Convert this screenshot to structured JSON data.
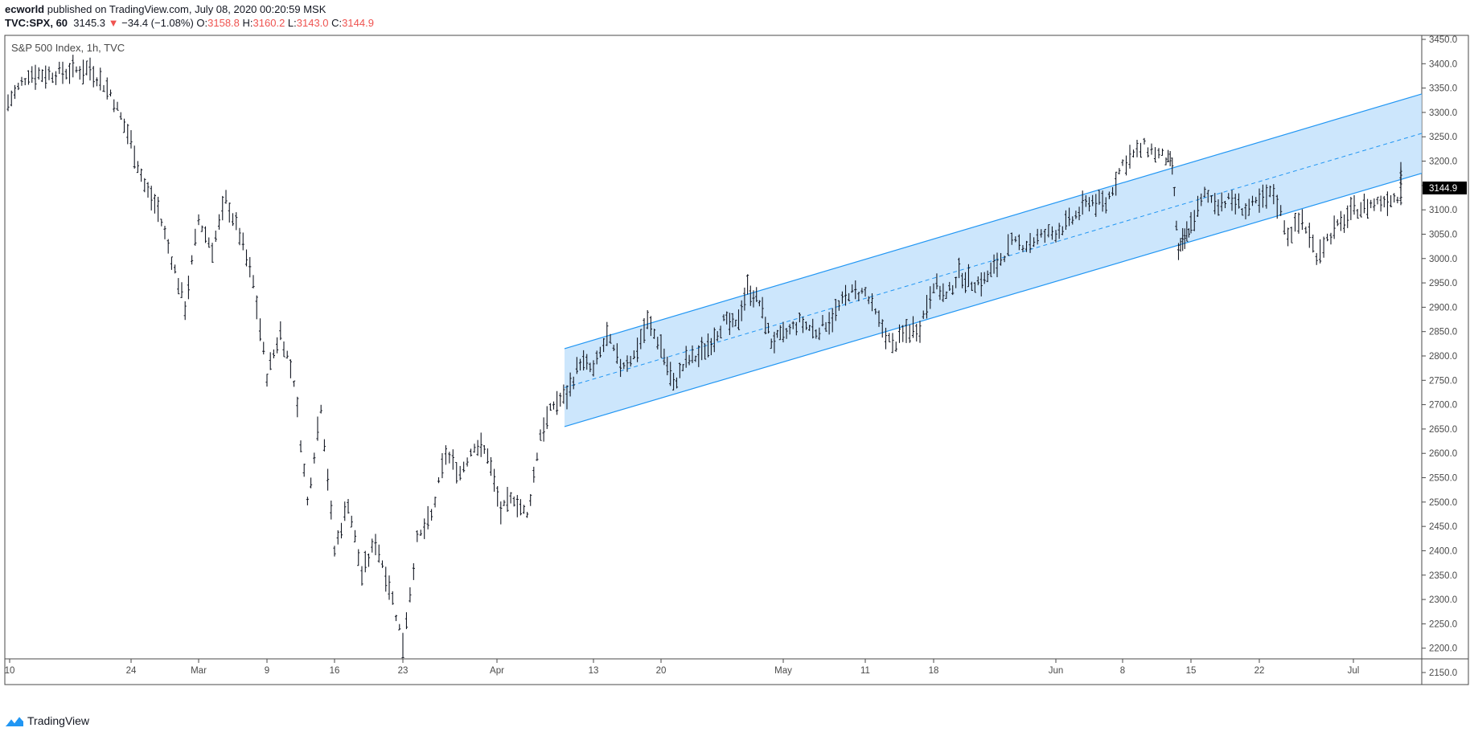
{
  "header": {
    "author": "ecworld",
    "published_text": "published on TradingView.com, July 08, 2020 00:20:59 MSK",
    "symbol": "TVC:SPX, 60",
    "last": "3145.3",
    "change_arrow": "▼",
    "change": "−34.4 (−1.08%)",
    "open_label": "O:",
    "open": "3158.8",
    "high_label": "H:",
    "high": "3160.2",
    "low_label": "L:",
    "low": "3143.0",
    "close_label": "C:",
    "close": "3144.9"
  },
  "legend": {
    "title": "S&P 500 Index, 1h, TVC"
  },
  "footer": {
    "brand": "TradingView",
    "icon": "tradingview-logo-icon"
  },
  "colors": {
    "candle": "#131722",
    "channel_line": "#2196f3",
    "channel_fill": "#bbdefb",
    "up": "#26a69a",
    "down": "#ef5350",
    "price_tag_bg": "#000000"
  },
  "chart_data": {
    "type": "line",
    "style": "ohlc-bars",
    "title": "S&P 500 Index, 1h, TVC",
    "ylim": [
      2125,
      3455
    ],
    "y_ticks": [
      3450.0,
      3400.0,
      3350.0,
      3300.0,
      3250.0,
      3200.0,
      3150.0,
      3100.0,
      3050.0,
      3000.0,
      2950.0,
      2900.0,
      2850.0,
      2800.0,
      2750.0,
      2700.0,
      2650.0,
      2600.0,
      2550.0,
      2500.0,
      2450.0,
      2400.0,
      2350.0,
      2300.0,
      2250.0,
      2200.0,
      2150.0
    ],
    "x_ticks": [
      "10",
      "24",
      "Mar",
      "9",
      "16",
      "23",
      "Apr",
      "13",
      "20",
      "May",
      "11",
      "18",
      "Jun",
      "8",
      "15",
      "22",
      "Jul"
    ],
    "last_price_label": "3144.9",
    "last_price": 3144.9,
    "grid": false,
    "series": [
      {
        "name": "S&P 500 Index",
        "points": [
          {
            "x": "Feb 10",
            "y": 3320
          },
          {
            "x": "Feb 12",
            "y": 3380
          },
          {
            "x": "Feb 14",
            "y": 3378
          },
          {
            "x": "Feb 17",
            "y": 3385
          },
          {
            "x": "Feb 19",
            "y": 3390
          },
          {
            "x": "Feb 21",
            "y": 3340
          },
          {
            "x": "Feb 24",
            "y": 3240
          },
          {
            "x": "Feb 25",
            "y": 3150
          },
          {
            "x": "Feb 26",
            "y": 3100
          },
          {
            "x": "Feb 27",
            "y": 3000
          },
          {
            "x": "Feb 28",
            "y": 2900
          },
          {
            "x": "Mar 2",
            "y": 3080
          },
          {
            "x": "Mar 3",
            "y": 3020
          },
          {
            "x": "Mar 4",
            "y": 3120
          },
          {
            "x": "Mar 5",
            "y": 3050
          },
          {
            "x": "Mar 6",
            "y": 2950
          },
          {
            "x": "Mar 9",
            "y": 2760
          },
          {
            "x": "Mar 10",
            "y": 2850
          },
          {
            "x": "Mar 11",
            "y": 2750
          },
          {
            "x": "Mar 12",
            "y": 2500
          },
          {
            "x": "Mar 13",
            "y": 2700
          },
          {
            "x": "Mar 16",
            "y": 2400
          },
          {
            "x": "Mar 17",
            "y": 2500
          },
          {
            "x": "Mar 18",
            "y": 2350
          },
          {
            "x": "Mar 19",
            "y": 2420
          },
          {
            "x": "Mar 20",
            "y": 2330
          },
          {
            "x": "Mar 23",
            "y": 2210
          },
          {
            "x": "Mar 24",
            "y": 2420
          },
          {
            "x": "Mar 25",
            "y": 2470
          },
          {
            "x": "Mar 26",
            "y": 2600
          },
          {
            "x": "Mar 27",
            "y": 2560
          },
          {
            "x": "Mar 30",
            "y": 2620
          },
          {
            "x": "Mar 31",
            "y": 2600
          },
          {
            "x": "Apr 1",
            "y": 2480
          },
          {
            "x": "Apr 2",
            "y": 2510
          },
          {
            "x": "Apr 3",
            "y": 2470
          },
          {
            "x": "Apr 6",
            "y": 2640
          },
          {
            "x": "Apr 7",
            "y": 2700
          },
          {
            "x": "Apr 8",
            "y": 2720
          },
          {
            "x": "Apr 9",
            "y": 2790
          },
          {
            "x": "Apr 13",
            "y": 2770
          },
          {
            "x": "Apr 14",
            "y": 2840
          },
          {
            "x": "Apr 15",
            "y": 2780
          },
          {
            "x": "Apr 16",
            "y": 2800
          },
          {
            "x": "Apr 17",
            "y": 2870
          },
          {
            "x": "Apr 20",
            "y": 2820
          },
          {
            "x": "Apr 21",
            "y": 2740
          },
          {
            "x": "Apr 22",
            "y": 2790
          },
          {
            "x": "Apr 23",
            "y": 2800
          },
          {
            "x": "Apr 24",
            "y": 2830
          },
          {
            "x": "Apr 27",
            "y": 2870
          },
          {
            "x": "Apr 28",
            "y": 2860
          },
          {
            "x": "Apr 29",
            "y": 2940
          },
          {
            "x": "Apr 30",
            "y": 2910
          },
          {
            "x": "May 1",
            "y": 2830
          },
          {
            "x": "May 4",
            "y": 2840
          },
          {
            "x": "May 5",
            "y": 2870
          },
          {
            "x": "May 6",
            "y": 2850
          },
          {
            "x": "May 7",
            "y": 2880
          },
          {
            "x": "May 8",
            "y": 2930
          },
          {
            "x": "May 11",
            "y": 2930
          },
          {
            "x": "May 12",
            "y": 2870
          },
          {
            "x": "May 13",
            "y": 2820
          },
          {
            "x": "May 14",
            "y": 2850
          },
          {
            "x": "May 15",
            "y": 2860
          },
          {
            "x": "May 18",
            "y": 2950
          },
          {
            "x": "May 19",
            "y": 2920
          },
          {
            "x": "May 20",
            "y": 2970
          },
          {
            "x": "May 21",
            "y": 2950
          },
          {
            "x": "May 22",
            "y": 2955
          },
          {
            "x": "May 26",
            "y": 2990
          },
          {
            "x": "May 27",
            "y": 3030
          },
          {
            "x": "May 28",
            "y": 3030
          },
          {
            "x": "May 29",
            "y": 3045
          },
          {
            "x": "Jun 1",
            "y": 3055
          },
          {
            "x": "Jun 2",
            "y": 3080
          },
          {
            "x": "Jun 3",
            "y": 3120
          },
          {
            "x": "Jun 4",
            "y": 3112
          },
          {
            "x": "Jun 5",
            "y": 3195
          },
          {
            "x": "Jun 8",
            "y": 3230
          },
          {
            "x": "Jun 9",
            "y": 3205
          },
          {
            "x": "Jun 10",
            "y": 3190
          },
          {
            "x": "Jun 11",
            "y": 3010
          },
          {
            "x": "Jun 12",
            "y": 3040
          },
          {
            "x": "Jun 15",
            "y": 3070
          },
          {
            "x": "Jun 16",
            "y": 3130
          },
          {
            "x": "Jun 17",
            "y": 3115
          },
          {
            "x": "Jun 18",
            "y": 3120
          },
          {
            "x": "Jun 19",
            "y": 3100
          },
          {
            "x": "Jun 22",
            "y": 3115
          },
          {
            "x": "Jun 23",
            "y": 3135
          },
          {
            "x": "Jun 24",
            "y": 3050
          },
          {
            "x": "Jun 25",
            "y": 3080
          },
          {
            "x": "Jun 26",
            "y": 3010
          },
          {
            "x": "Jun 29",
            "y": 3050
          },
          {
            "x": "Jun 30",
            "y": 3100
          },
          {
            "x": "Jul 1",
            "y": 3115
          },
          {
            "x": "Jul 2",
            "y": 3130
          },
          {
            "x": "Jul 6",
            "y": 3180
          },
          {
            "x": "Jul 7",
            "y": 3145
          }
        ]
      }
    ],
    "annotations": [
      {
        "type": "parallel-channel",
        "start": "Apr 9",
        "end": "Jul 7",
        "upper": [
          2815,
          3338
        ],
        "middle": [
          2735,
          3257
        ],
        "lower": [
          2655,
          3175
        ]
      }
    ]
  }
}
